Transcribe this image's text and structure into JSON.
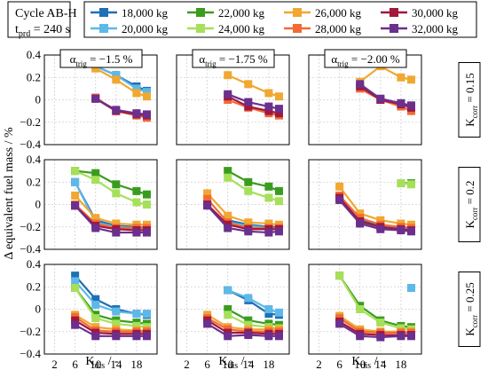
{
  "cycle": {
    "line1": "Cycle AB-H",
    "line2_main": "t",
    "line2_sub": "prd",
    "line2_rest": " = 240 s"
  },
  "legend": {
    "entries": [
      {
        "label": "18,000 kg",
        "color": "#1f6fb4"
      },
      {
        "label": "22,000 kg",
        "color": "#3a9c1f"
      },
      {
        "label": "26,000 kg",
        "color": "#f0a830"
      },
      {
        "label": "30,000 kg",
        "color": "#a3173a"
      },
      {
        "label": "20,000 kg",
        "color": "#5eb8e8"
      },
      {
        "label": "24,000 kg",
        "color": "#a6e05a"
      },
      {
        "label": "28,000 kg",
        "color": "#f26a36"
      },
      {
        "label": "32,000 kg",
        "color": "#6b2f8e"
      }
    ]
  },
  "axis_labels": {
    "ylabel": "Δ equivalent fuel mass / %",
    "xlabel_main": "K",
    "xlabel_sub": "dis",
    "xlabel_rest": " / -"
  },
  "col_labels": [
    {
      "greek": "α",
      "sub": "trig",
      "rest": " = −1.5 %"
    },
    {
      "greek": "α",
      "sub": "trig",
      "rest": " = −1.75 %"
    },
    {
      "greek": "α",
      "sub": "trig",
      "rest": " = −2.00 %"
    }
  ],
  "row_labels": [
    {
      "main": "K",
      "sub": "corr",
      "rest": " = 0.15"
    },
    {
      "main": "K",
      "sub": "corr",
      "rest": " = 0.2"
    },
    {
      "main": "K",
      "sub": "corr",
      "rest": " = 0.25"
    }
  ],
  "chart_data": {
    "type": "line",
    "x": [
      6,
      10,
      14,
      18,
      20
    ],
    "xticks": [
      2,
      6,
      10,
      14,
      18
    ],
    "xlim": [
      0,
      22
    ],
    "yticks": [
      0.4,
      0.2,
      0,
      -0.2,
      -0.4
    ],
    "ytick_labels": [
      "0.4",
      "0.2",
      "0",
      "−0.2",
      "−0.4"
    ],
    "ylim": [
      -0.4,
      0.4
    ],
    "grid": true,
    "series_colors": [
      "#1f6fb4",
      "#5eb8e8",
      "#3a9c1f",
      "#a6e05a",
      "#f0a830",
      "#f26a36",
      "#a3173a",
      "#6b2f8e"
    ],
    "panels": [
      {
        "row": 0,
        "col": 0,
        "series": [
          {
            "values": [
              null,
              0.3,
              0.22,
              0.12,
              0.08
            ]
          },
          {
            "values": [
              null,
              0.3,
              0.22,
              0.1,
              0.07
            ]
          },
          {
            "values": [
              null,
              null,
              null,
              null,
              null
            ]
          },
          {
            "values": [
              null,
              null,
              null,
              null,
              null
            ]
          },
          {
            "values": [
              null,
              0.28,
              0.18,
              0.06,
              0.03
            ]
          },
          {
            "values": [
              null,
              0.02,
              -0.1,
              -0.14,
              -0.16
            ]
          },
          {
            "values": [
              null,
              0.01,
              -0.1,
              -0.13,
              -0.14
            ]
          },
          {
            "values": [
              null,
              0.01,
              -0.09,
              -0.12,
              -0.13
            ]
          }
        ]
      },
      {
        "row": 0,
        "col": 1,
        "series": [
          {
            "values": [
              null,
              null,
              null,
              null,
              null
            ]
          },
          {
            "values": [
              null,
              null,
              null,
              null,
              null
            ]
          },
          {
            "values": [
              null,
              null,
              null,
              null,
              null
            ]
          },
          {
            "values": [
              null,
              null,
              null,
              null,
              null
            ]
          },
          {
            "values": [
              null,
              0.22,
              0.14,
              0.06,
              0.03
            ]
          },
          {
            "values": [
              null,
              0.0,
              -0.07,
              -0.12,
              -0.14
            ]
          },
          {
            "values": [
              null,
              0.03,
              -0.06,
              -0.1,
              -0.12
            ]
          },
          {
            "values": [
              null,
              0.05,
              -0.02,
              -0.06,
              -0.08
            ]
          }
        ]
      },
      {
        "row": 0,
        "col": 2,
        "series": [
          {
            "values": [
              null,
              null,
              null,
              null,
              null
            ]
          },
          {
            "values": [
              null,
              null,
              null,
              null,
              null
            ]
          },
          {
            "values": [
              null,
              null,
              null,
              null,
              null
            ]
          },
          {
            "values": [
              null,
              null,
              null,
              null,
              null
            ]
          },
          {
            "values": [
              null,
              0.16,
              0.3,
              0.2,
              0.18
            ]
          },
          {
            "values": [
              null,
              0.1,
              0.0,
              -0.06,
              -0.1
            ]
          },
          {
            "values": [
              null,
              0.12,
              0.0,
              -0.04,
              -0.07
            ]
          },
          {
            "values": [
              null,
              0.14,
              0.01,
              -0.03,
              -0.05
            ]
          }
        ]
      },
      {
        "row": 1,
        "col": 0,
        "series": [
          {
            "values": [
              0.2,
              -0.14,
              -0.19,
              -0.2,
              -0.21
            ]
          },
          {
            "values": [
              0.2,
              -0.16,
              -0.2,
              -0.21,
              -0.22
            ]
          },
          {
            "values": [
              0.3,
              0.28,
              0.18,
              0.12,
              0.09
            ]
          },
          {
            "values": [
              0.3,
              0.22,
              0.1,
              0.02,
              0.0
            ]
          },
          {
            "values": [
              0.08,
              -0.12,
              -0.17,
              -0.18,
              -0.18
            ]
          },
          {
            "values": [
              0.0,
              -0.17,
              -0.21,
              -0.21,
              -0.21
            ]
          },
          {
            "values": [
              -0.01,
              -0.19,
              -0.22,
              -0.23,
              -0.23
            ]
          },
          {
            "values": [
              -0.01,
              -0.21,
              -0.25,
              -0.25,
              -0.25
            ]
          }
        ]
      },
      {
        "row": 1,
        "col": 1,
        "series": [
          {
            "values": [
              null,
              -0.14,
              -0.18,
              -0.2,
              -0.2
            ]
          },
          {
            "values": [
              null,
              -0.16,
              -0.19,
              -0.21,
              -0.21
            ]
          },
          {
            "values": [
              null,
              0.3,
              0.2,
              0.16,
              0.12
            ]
          },
          {
            "values": [
              null,
              0.24,
              0.12,
              0.06,
              0.03
            ]
          },
          {
            "values": [
              0.1,
              -0.1,
              -0.16,
              -0.17,
              -0.18
            ]
          },
          {
            "values": [
              0.05,
              -0.16,
              -0.21,
              -0.21,
              -0.21
            ]
          },
          {
            "values": [
              0.0,
              -0.18,
              -0.22,
              -0.22,
              -0.22
            ]
          },
          {
            "values": [
              -0.01,
              -0.21,
              -0.24,
              -0.25,
              -0.24
            ]
          }
        ]
      },
      {
        "row": 1,
        "col": 2,
        "series": [
          {
            "values": [
              null,
              -0.14,
              -0.19,
              -0.2,
              -0.21
            ]
          },
          {
            "values": [
              null,
              -0.16,
              -0.2,
              -0.21,
              -0.22
            ]
          },
          {
            "values": [
              null,
              null,
              null,
              0.19,
              0.19
            ]
          },
          {
            "values": [
              null,
              null,
              null,
              0.19,
              0.18
            ]
          },
          {
            "values": [
              0.16,
              -0.08,
              -0.14,
              -0.17,
              -0.18
            ]
          },
          {
            "values": [
              0.08,
              -0.12,
              -0.18,
              -0.2,
              -0.21
            ]
          },
          {
            "values": [
              0.06,
              -0.15,
              -0.2,
              -0.22,
              -0.23
            ]
          },
          {
            "values": [
              0.04,
              -0.17,
              -0.22,
              -0.23,
              -0.24
            ]
          }
        ]
      },
      {
        "row": 2,
        "col": 0,
        "series": [
          {
            "values": [
              0.3,
              0.09,
              0.0,
              -0.04,
              -0.05
            ]
          },
          {
            "values": [
              0.25,
              0.04,
              -0.02,
              -0.04,
              -0.04
            ]
          },
          {
            "values": [
              0.19,
              -0.05,
              -0.1,
              -0.12,
              -0.13
            ]
          },
          {
            "values": [
              0.19,
              -0.08,
              -0.13,
              -0.15,
              -0.16
            ]
          },
          {
            "values": [
              -0.05,
              -0.16,
              -0.18,
              -0.19,
              -0.19
            ]
          },
          {
            "values": [
              -0.07,
              -0.19,
              -0.2,
              -0.2,
              -0.2
            ]
          },
          {
            "values": [
              -0.1,
              -0.21,
              -0.22,
              -0.22,
              -0.22
            ]
          },
          {
            "values": [
              -0.14,
              -0.24,
              -0.24,
              -0.24,
              -0.24
            ]
          }
        ]
      },
      {
        "row": 2,
        "col": 1,
        "series": [
          {
            "values": [
              null,
              0.17,
              0.08,
              -0.04,
              -0.05
            ]
          },
          {
            "values": [
              null,
              0.17,
              0.1,
              0.0,
              -0.03
            ]
          },
          {
            "values": [
              null,
              0.0,
              -0.1,
              -0.13,
              -0.14
            ]
          },
          {
            "values": [
              null,
              -0.05,
              -0.14,
              -0.16,
              -0.17
            ]
          },
          {
            "values": [
              -0.05,
              -0.16,
              -0.18,
              -0.18,
              -0.18
            ]
          },
          {
            "values": [
              -0.08,
              -0.18,
              -0.2,
              -0.2,
              -0.2
            ]
          },
          {
            "values": [
              -0.1,
              -0.21,
              -0.21,
              -0.22,
              -0.22
            ]
          },
          {
            "values": [
              -0.13,
              -0.24,
              -0.23,
              -0.24,
              -0.24
            ]
          }
        ]
      },
      {
        "row": 2,
        "col": 2,
        "series": [
          {
            "values": [
              null,
              null,
              null,
              null,
              0.19
            ]
          },
          {
            "values": [
              null,
              null,
              null,
              null,
              0.19
            ]
          },
          {
            "values": [
              0.3,
              0.03,
              -0.1,
              -0.15,
              -0.16
            ]
          },
          {
            "values": [
              0.3,
              0.0,
              -0.12,
              -0.17,
              -0.18
            ]
          },
          {
            "values": [
              -0.06,
              -0.18,
              -0.2,
              -0.2,
              -0.2
            ]
          },
          {
            "values": [
              -0.08,
              -0.2,
              -0.21,
              -0.21,
              -0.21
            ]
          },
          {
            "values": [
              -0.11,
              -0.22,
              -0.23,
              -0.23,
              -0.23
            ]
          },
          {
            "values": [
              -0.13,
              -0.24,
              -0.25,
              -0.24,
              -0.24
            ]
          }
        ]
      }
    ]
  }
}
